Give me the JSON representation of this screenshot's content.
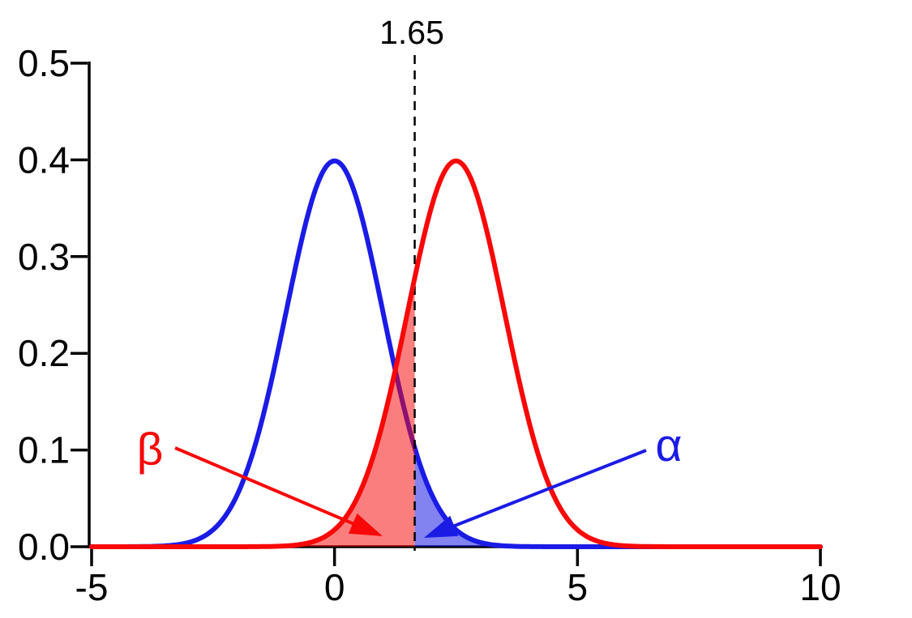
{
  "chart_data": {
    "type": "line",
    "title": "",
    "description": "Two overlapping normal distribution curves with a critical value line, showing Type I error (alpha) and Type II error (beta) regions",
    "critical_value": 1.65,
    "critical_value_label": "1.65",
    "x_axis": {
      "min": -5,
      "max": 10,
      "ticks": [
        -5,
        0,
        5,
        10
      ],
      "tick_labels": [
        "-5",
        "0",
        "5",
        "10"
      ]
    },
    "y_axis": {
      "min": 0,
      "max": 0.5,
      "ticks": [
        0,
        0.1,
        0.2,
        0.3,
        0.4,
        0.5
      ],
      "tick_labels": [
        "0.0",
        "0.1",
        "0.2",
        "0.3",
        "0.4",
        "0.5"
      ]
    },
    "series": [
      {
        "name": "null-distribution",
        "shape": "normal-pdf",
        "mean": 0,
        "sd": 1,
        "peak_y": 0.399,
        "color": "#1b1be6"
      },
      {
        "name": "alternative-distribution",
        "shape": "normal-pdf",
        "mean": 2.5,
        "sd": 1,
        "peak_y": 0.399,
        "color": "#f80808"
      }
    ],
    "regions": [
      {
        "name": "beta-region",
        "label": "β",
        "area": "under alternative curve left of critical value",
        "fill": "rgba(248,8,8,0.52)",
        "label_color": "#f80808"
      },
      {
        "name": "alpha-region",
        "label": "α",
        "area": "under null curve right of critical value",
        "fill": "rgba(27,27,230,0.55)",
        "label_color": "#1b1be6"
      }
    ],
    "grid": false,
    "legend": false
  },
  "colors": {
    "background": "#ffffff",
    "axis": "#000000",
    "critical_line": "#000000"
  }
}
